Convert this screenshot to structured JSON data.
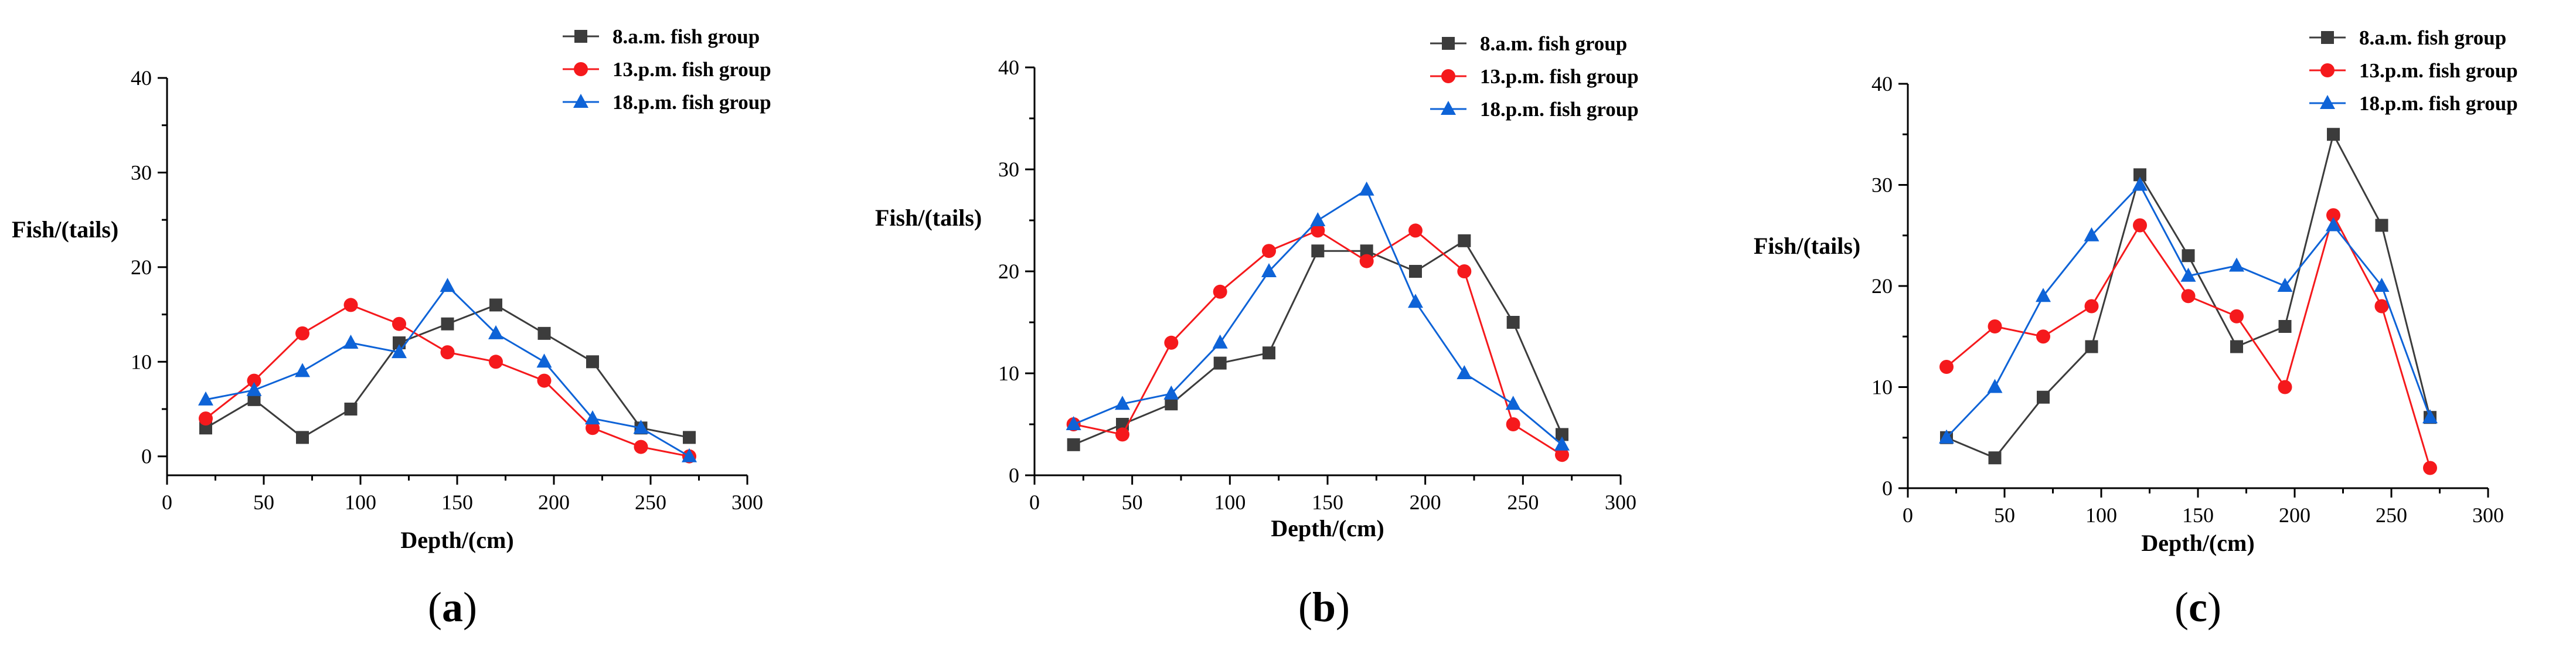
{
  "chart_data": [
    {
      "type": "line",
      "panel_label": "(a)",
      "panel_letter": "a",
      "xlabel": "Depth/(cm)",
      "ylabel": "Fish/(tails)",
      "xlim": [
        0,
        300
      ],
      "ylim": [
        -2,
        40
      ],
      "xticks": [
        0,
        50,
        100,
        150,
        200,
        250,
        300
      ],
      "yticks": [
        0,
        10,
        20,
        30,
        40
      ],
      "legend_position": "top-right",
      "x": [
        20,
        45,
        70,
        95,
        120,
        145,
        170,
        195,
        220,
        245,
        270
      ],
      "series": [
        {
          "name": "8.a.m.  fish group",
          "color": "#3c3c3c",
          "marker": "square",
          "values": [
            3,
            6,
            2,
            5,
            12,
            14,
            16,
            13,
            10,
            3,
            2
          ]
        },
        {
          "name": "13.p.m. fish group",
          "color": "#f5191c",
          "marker": "circle",
          "values": [
            4,
            8,
            13,
            16,
            14,
            11,
            10,
            8,
            3,
            1,
            0
          ]
        },
        {
          "name": "18.p.m. fish group",
          "color": "#0e63d7",
          "marker": "triangle",
          "values": [
            6,
            7,
            9,
            12,
            11,
            18,
            13,
            10,
            4,
            3,
            0
          ]
        }
      ]
    },
    {
      "type": "line",
      "panel_label": "(b)",
      "panel_letter": "b",
      "xlabel": "Depth/(cm)",
      "ylabel": "Fish/(tails)",
      "xlim": [
        0,
        300
      ],
      "ylim": [
        0,
        40
      ],
      "xticks": [
        0,
        50,
        100,
        150,
        200,
        250,
        300
      ],
      "yticks": [
        0,
        10,
        20,
        30,
        40
      ],
      "legend_position": "top-right",
      "x": [
        20,
        45,
        70,
        95,
        120,
        145,
        170,
        195,
        220,
        245,
        270
      ],
      "series": [
        {
          "name": "8.a.m.  fish group",
          "color": "#3c3c3c",
          "marker": "square",
          "values": [
            3,
            5,
            7,
            11,
            12,
            22,
            22,
            20,
            23,
            15,
            4
          ]
        },
        {
          "name": "13.p.m. fish group",
          "color": "#f5191c",
          "marker": "circle",
          "values": [
            5,
            4,
            13,
            18,
            22,
            24,
            21,
            24,
            20,
            5,
            2
          ]
        },
        {
          "name": "18.p.m. fish group",
          "color": "#0e63d7",
          "marker": "triangle",
          "values": [
            5,
            7,
            8,
            13,
            20,
            25,
            28,
            17,
            10,
            7,
            3
          ]
        }
      ]
    },
    {
      "type": "line",
      "panel_label": "(c)",
      "panel_letter": "c",
      "xlabel": "Depth/(cm)",
      "ylabel": "Fish/(tails)",
      "xlim": [
        0,
        300
      ],
      "ylim": [
        0,
        40
      ],
      "xticks": [
        0,
        50,
        100,
        150,
        200,
        250,
        300
      ],
      "yticks": [
        0,
        10,
        20,
        30,
        40
      ],
      "legend_position": "top-right",
      "x": [
        20,
        45,
        70,
        95,
        120,
        145,
        170,
        195,
        220,
        245,
        270
      ],
      "series": [
        {
          "name": "8.a.m.  fish group",
          "color": "#3c3c3c",
          "marker": "square",
          "values": [
            5,
            3,
            9,
            14,
            31,
            23,
            14,
            16,
            35,
            26,
            7
          ]
        },
        {
          "name": "13.p.m. fish group",
          "color": "#f5191c",
          "marker": "circle",
          "values": [
            12,
            16,
            15,
            18,
            26,
            19,
            17,
            10,
            27,
            18,
            2
          ]
        },
        {
          "name": "18.p.m. fish group",
          "color": "#0e63d7",
          "marker": "triangle",
          "values": [
            5,
            10,
            19,
            25,
            30,
            21,
            22,
            20,
            26,
            20,
            7
          ]
        }
      ]
    }
  ]
}
